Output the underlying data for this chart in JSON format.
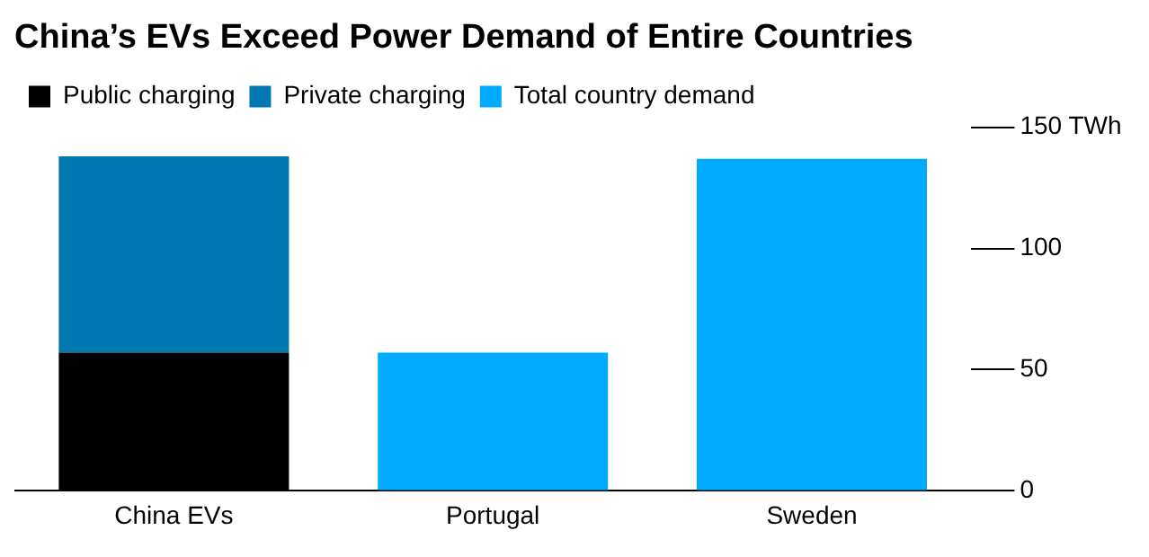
{
  "chart_data": {
    "type": "bar",
    "title": "China’s EVs Exceed Power Demand of Entire Countries",
    "categories": [
      "China EVs",
      "Portugal",
      "Sweden"
    ],
    "series": [
      {
        "name": "Public charging",
        "color": "#000000",
        "values": [
          57,
          null,
          null
        ]
      },
      {
        "name": "Private charging",
        "color": "#0077b0",
        "values": [
          81,
          null,
          null
        ]
      },
      {
        "name": "Total country demand",
        "color": "#00abff",
        "values": [
          null,
          57,
          137
        ]
      }
    ],
    "stacked": true,
    "ylim": [
      0,
      150
    ],
    "yticks": [
      0,
      50,
      100,
      {
        "value": 150,
        "label": "150 TWh"
      }
    ],
    "grid": false,
    "legend": "top left"
  }
}
